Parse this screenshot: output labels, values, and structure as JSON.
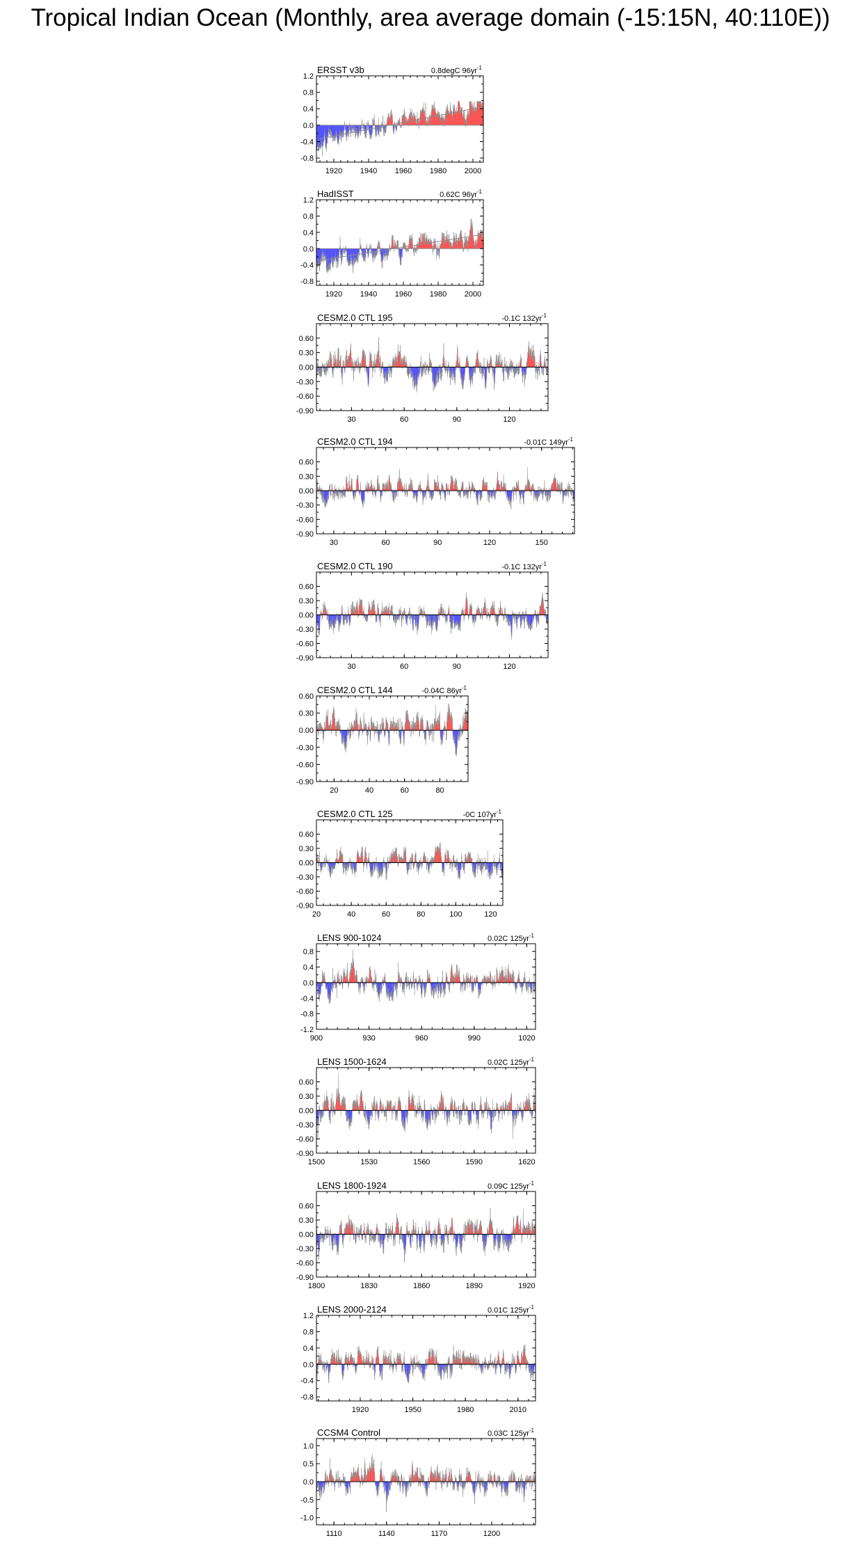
{
  "title": "Tropical Indian Ocean (Monthly, area average domain (-15:15N, 40:110E))",
  "colors": {
    "positive": "#ff0000",
    "negative": "#0000ff",
    "zero_line": "#000000",
    "trend_line": "#8c8c8c",
    "frame": "#000000"
  },
  "chart_data": [
    {
      "type": "bar",
      "name": "ERSST v3b",
      "trend_label": "0.8degC 96yr",
      "trend_exp": "-1",
      "xlim": [
        1910,
        2006
      ],
      "ylim": [
        -0.9,
        1.2
      ],
      "xticks": [
        1920,
        1940,
        1960,
        1980,
        2000
      ],
      "xtick_labels": [
        "1920",
        "1940",
        "1960",
        "1980",
        "2000"
      ],
      "yticks": [
        -0.8,
        -0.4,
        0,
        0.4,
        0.8,
        1.2
      ],
      "ytick_labels": [
        "-0.8",
        "-0.4",
        "0.0",
        "0.4",
        "0.8",
        "1.2"
      ],
      "trend": [
        -0.35,
        0.45
      ],
      "amp": 0.2,
      "pos_max": 0.58,
      "neg_min": -0.75,
      "seed": 11
    },
    {
      "type": "bar",
      "name": "HadISST",
      "trend_label": "0.62C 96yr",
      "trend_exp": "-1",
      "xlim": [
        1910,
        2006
      ],
      "ylim": [
        -0.9,
        1.2
      ],
      "xticks": [
        1920,
        1940,
        1960,
        1980,
        2000
      ],
      "xtick_labels": [
        "1920",
        "1940",
        "1960",
        "1980",
        "2000"
      ],
      "yticks": [
        -0.8,
        -0.4,
        0,
        0.4,
        0.8,
        1.2
      ],
      "ytick_labels": [
        "-0.8",
        "-0.4",
        "0.0",
        "0.4",
        "0.8",
        "1.2"
      ],
      "trend": [
        -0.3,
        0.35
      ],
      "amp": 0.2,
      "pos_max": 1.0,
      "neg_min": -0.6,
      "seed": 23
    },
    {
      "type": "bar",
      "name": "CESM2.0 CTL 195",
      "trend_label": "-0.1C 132yr",
      "trend_exp": "-1",
      "xlim": [
        10,
        142
      ],
      "ylim": [
        -0.9,
        0.9
      ],
      "xticks": [
        30,
        60,
        90,
        120
      ],
      "xtick_labels": [
        "30",
        "60",
        "90",
        "120"
      ],
      "yticks": [
        -0.9,
        -0.6,
        -0.3,
        0,
        0.3,
        0.6
      ],
      "ytick_labels": [
        "-0.90",
        "-0.60",
        "-0.30",
        "0.00",
        "0.30",
        "0.60"
      ],
      "trend": [
        0,
        0
      ],
      "amp": 0.24,
      "pos_max": 0.75,
      "neg_min": -0.75,
      "seed": 37
    },
    {
      "type": "bar",
      "name": "CESM2.0 CTL 194",
      "trend_label": "-0.01C 149yr",
      "trend_exp": "-1",
      "xlim": [
        20,
        169
      ],
      "ylim": [
        -0.9,
        0.9
      ],
      "xticks": [
        30,
        60,
        90,
        120,
        150
      ],
      "xtick_labels": [
        "30",
        "60",
        "90",
        "120",
        "150"
      ],
      "yticks": [
        -0.9,
        -0.6,
        -0.3,
        0,
        0.3,
        0.6
      ],
      "ytick_labels": [
        "-0.90",
        "-0.60",
        "-0.30",
        "0.00",
        "0.30",
        "0.60"
      ],
      "trend": [
        0,
        0
      ],
      "amp": 0.18,
      "pos_max": 0.65,
      "neg_min": -0.6,
      "seed": 41
    },
    {
      "type": "bar",
      "name": "CESM2.0 CTL 190",
      "trend_label": "-0.1C 132yr",
      "trend_exp": "-1",
      "xlim": [
        10,
        142
      ],
      "ylim": [
        -0.9,
        0.9
      ],
      "xticks": [
        30,
        60,
        90,
        120
      ],
      "xtick_labels": [
        "30",
        "60",
        "90",
        "120"
      ],
      "yticks": [
        -0.9,
        -0.6,
        -0.3,
        0,
        0.3,
        0.6
      ],
      "ytick_labels": [
        "-0.90",
        "-0.60",
        "-0.30",
        "0.00",
        "0.30",
        "0.60"
      ],
      "trend": [
        0,
        0
      ],
      "amp": 0.2,
      "pos_max": 0.55,
      "neg_min": -0.7,
      "seed": 53
    },
    {
      "type": "bar",
      "name": "CESM2.0 CTL 144",
      "trend_label": "-0.04C 86yr",
      "trend_exp": "-1",
      "xlim": [
        10,
        96
      ],
      "ylim": [
        -0.9,
        0.6
      ],
      "xticks": [
        20,
        40,
        60,
        80
      ],
      "xtick_labels": [
        "20",
        "40",
        "60",
        "80"
      ],
      "yticks": [
        -0.9,
        -0.6,
        -0.3,
        0,
        0.3,
        0.6
      ],
      "ytick_labels": [
        "-0.90",
        "-0.60",
        "-0.30",
        "0.00",
        "0.30",
        "0.60"
      ],
      "trend": [
        0,
        0
      ],
      "amp": 0.2,
      "pos_max": 0.5,
      "neg_min": -0.8,
      "seed": 61
    },
    {
      "type": "bar",
      "name": "CESM2.0 CTL 125",
      "trend_label": "-0C 107yr",
      "trend_exp": "-1",
      "xlim": [
        20,
        127
      ],
      "ylim": [
        -0.9,
        0.9
      ],
      "xticks": [
        20,
        40,
        60,
        80,
        100,
        120
      ],
      "xtick_labels": [
        "20",
        "40",
        "60",
        "80",
        "100",
        "120"
      ],
      "yticks": [
        -0.9,
        -0.6,
        -0.3,
        0,
        0.3,
        0.6
      ],
      "ytick_labels": [
        "-0.90",
        "-0.60",
        "-0.30",
        "0.00",
        "0.30",
        "0.60"
      ],
      "trend": [
        0,
        0
      ],
      "amp": 0.2,
      "pos_max": 0.65,
      "neg_min": -0.85,
      "seed": 71
    },
    {
      "type": "bar",
      "name": "LENS 900-1024",
      "trend_label": "0.02C 125yr",
      "trend_exp": "-1",
      "xlim": [
        900,
        1025
      ],
      "ylim": [
        -1.2,
        1.0
      ],
      "xticks": [
        900,
        930,
        960,
        990,
        1020
      ],
      "xtick_labels": [
        "900",
        "930",
        "960",
        "990",
        "1020"
      ],
      "yticks": [
        -1.2,
        -0.8,
        -0.4,
        0,
        0.4,
        0.8
      ],
      "ytick_labels": [
        "-1.2",
        "-0.8",
        "-0.4",
        "0.0",
        "0.4",
        "0.8"
      ],
      "trend": [
        0,
        0
      ],
      "amp": 0.25,
      "pos_max": 0.85,
      "neg_min": -1.0,
      "seed": 83
    },
    {
      "type": "bar",
      "name": "LENS 1500-1624",
      "trend_label": "0.02C 125yr",
      "trend_exp": "-1",
      "xlim": [
        1500,
        1625
      ],
      "ylim": [
        -0.9,
        0.9
      ],
      "xticks": [
        1500,
        1530,
        1560,
        1590,
        1620
      ],
      "xtick_labels": [
        "1500",
        "1530",
        "1560",
        "1590",
        "1620"
      ],
      "yticks": [
        -0.9,
        -0.6,
        -0.3,
        0,
        0.3,
        0.6
      ],
      "ytick_labels": [
        "-0.90",
        "-0.60",
        "-0.30",
        "0.00",
        "0.30",
        "0.60"
      ],
      "trend": [
        0,
        0
      ],
      "amp": 0.24,
      "pos_max": 0.8,
      "neg_min": -0.85,
      "seed": 97
    },
    {
      "type": "bar",
      "name": "LENS 1800-1924",
      "trend_label": "0.09C 125yr",
      "trend_exp": "-1",
      "xlim": [
        1800,
        1925
      ],
      "ylim": [
        -0.9,
        0.9
      ],
      "xticks": [
        1800,
        1830,
        1860,
        1890,
        1920
      ],
      "xtick_labels": [
        "1800",
        "1830",
        "1860",
        "1890",
        "1920"
      ],
      "yticks": [
        -0.9,
        -0.6,
        -0.3,
        0,
        0.3,
        0.6
      ],
      "ytick_labels": [
        "-0.90",
        "-0.60",
        "-0.30",
        "0.00",
        "0.30",
        "0.60"
      ],
      "trend": [
        0,
        0
      ],
      "amp": 0.24,
      "pos_max": 0.8,
      "neg_min": -0.8,
      "seed": 101
    },
    {
      "type": "bar",
      "name": "LENS 2000-2124",
      "trend_label": "0.01C 125yr",
      "trend_exp": "-1",
      "xlim": [
        1895,
        2020
      ],
      "ylim": [
        -0.9,
        1.2
      ],
      "xticks": [
        1920,
        1950,
        1980,
        2010
      ],
      "xtick_labels": [
        "1920",
        "1950",
        "1980",
        "2010"
      ],
      "yticks": [
        -0.8,
        -0.4,
        0,
        0.4,
        0.8,
        1.2
      ],
      "ytick_labels": [
        "-0.8",
        "-0.4",
        "0.0",
        "0.4",
        "0.8",
        "1.2"
      ],
      "trend": [
        0,
        0
      ],
      "amp": 0.24,
      "pos_max": 0.95,
      "neg_min": -0.8,
      "seed": 113
    },
    {
      "type": "bar",
      "name": "CCSM4 Control",
      "trend_label": "0.03C 125yr",
      "trend_exp": "-1",
      "xlim": [
        1100,
        1225
      ],
      "ylim": [
        -1.2,
        1.2
      ],
      "xticks": [
        1110,
        1140,
        1170,
        1200
      ],
      "xtick_labels": [
        "1110",
        "1140",
        "1170",
        "1200"
      ],
      "yticks": [
        -1.0,
        -0.5,
        0,
        0.5,
        1.0
      ],
      "ytick_labels": [
        "-1.0",
        "-0.5",
        "0.0",
        "0.5",
        "1.0"
      ],
      "trend": [
        0,
        0
      ],
      "amp": 0.28,
      "pos_max": 0.95,
      "neg_min": -1.0,
      "seed": 127
    }
  ]
}
